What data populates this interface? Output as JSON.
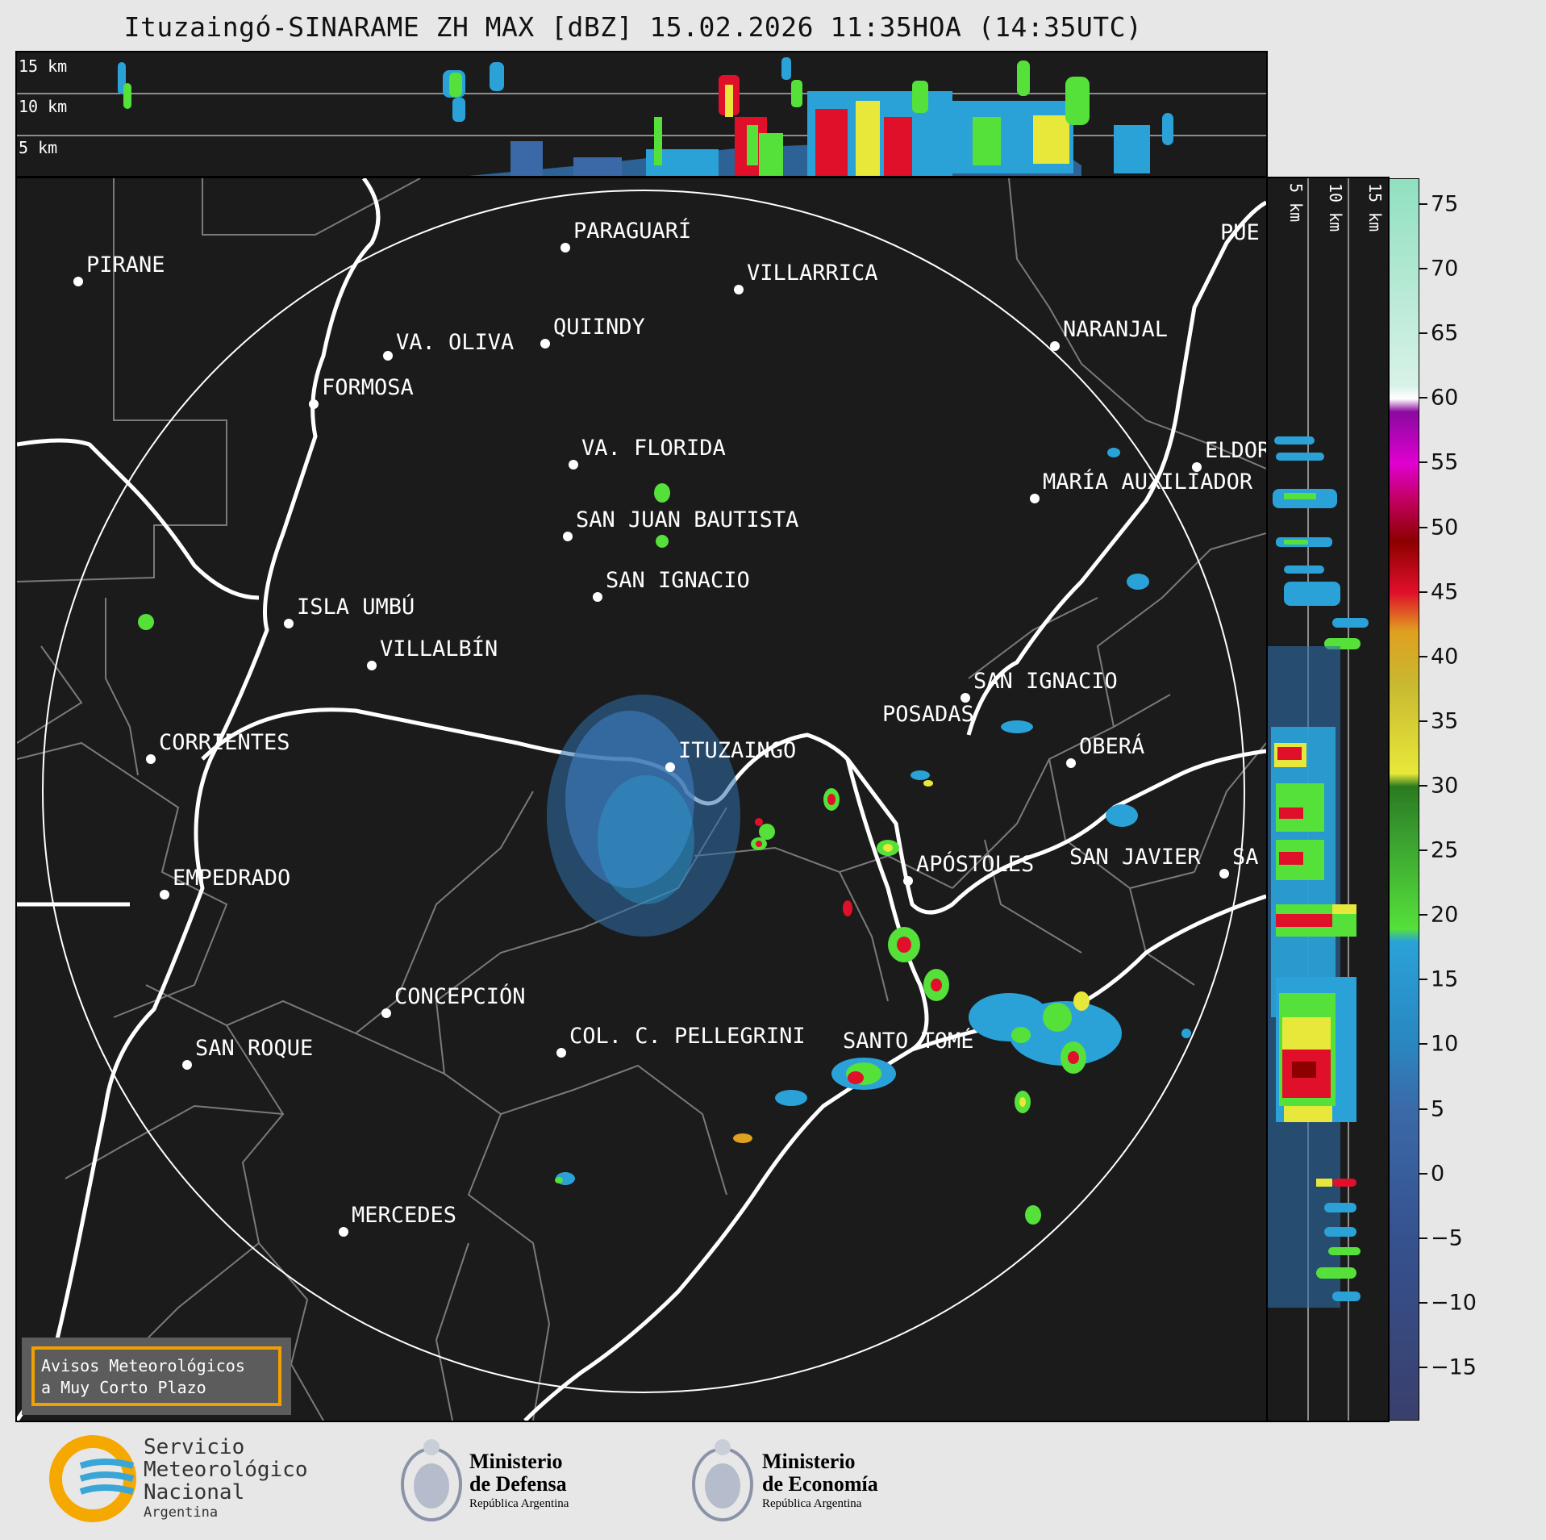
{
  "title": "Ituzaingó-SINARAME ZH MAX [dBZ] 15.02.2026 11:35HOA (14:35UTC)",
  "top_panel": {
    "height_labels": [
      "15 km",
      "10 km",
      "5 km"
    ]
  },
  "side_panel": {
    "height_labels": [
      "5 km",
      "10 km",
      "15 km"
    ]
  },
  "map": {
    "radar_site": "ITUZAINGÓ",
    "places": [
      {
        "name": "PARAGUARÍ"
      },
      {
        "name": "PIRANE"
      },
      {
        "name": "VILLARRICA"
      },
      {
        "name": "VA. OLIVA"
      },
      {
        "name": "QUIINDY"
      },
      {
        "name": "NARANJAL"
      },
      {
        "name": "FORMOSA"
      },
      {
        "name": "VA. FLORIDA"
      },
      {
        "name": "ELDOR"
      },
      {
        "name": "MARÍA AUXILIADOR"
      },
      {
        "name": "SAN JUAN BAUTISTA"
      },
      {
        "name": "SAN IGNACIO"
      },
      {
        "name": "ISLA UMBÚ"
      },
      {
        "name": "VILLALBÍN"
      },
      {
        "name": "SAN IGNACIO"
      },
      {
        "name": "POSADAS"
      },
      {
        "name": "CORRIENTES"
      },
      {
        "name": "ITUZAINGÓ"
      },
      {
        "name": "OBERÁ"
      },
      {
        "name": "APÓSTOLES"
      },
      {
        "name": "SAN JAVIER"
      },
      {
        "name": "SA"
      },
      {
        "name": "EMPEDRADO"
      },
      {
        "name": "CONCEPCIÓN"
      },
      {
        "name": "COL. C. PELLEGRINI"
      },
      {
        "name": "SANTO TOMÉ"
      },
      {
        "name": "SAN ROQUE"
      },
      {
        "name": "MERCEDES"
      },
      {
        "name": "PUE"
      }
    ]
  },
  "notice": {
    "line1": "Avisos Meteorológicos",
    "line2": "a Muy Corto Plazo"
  },
  "colorbar": {
    "unit": "dBZ",
    "ticks": [
      "75",
      "70",
      "65",
      "60",
      "55",
      "50",
      "45",
      "40",
      "35",
      "30",
      "25",
      "20",
      "15",
      "10",
      "5",
      "0",
      "−5",
      "−10",
      "−15"
    ],
    "tick_values": [
      75,
      70,
      65,
      60,
      55,
      50,
      45,
      40,
      35,
      30,
      25,
      20,
      15,
      10,
      5,
      0,
      -5,
      -10,
      -15
    ],
    "range": [
      -19,
      77
    ],
    "colors": {
      "clear": "#3a3f6b",
      "low": "#3b69a8",
      "mid": "#2aa2d8",
      "light_green": "#55e03a",
      "green": "#2a7a20",
      "yellow": "#e8e83a",
      "olive": "#c8b830",
      "orange": "#e0a020",
      "red": "#e0102a",
      "dark_red": "#8c0000",
      "magenta": "#e000d0",
      "purple": "#8a0aa0",
      "white": "#ffffff",
      "mint": "#90e0c0"
    }
  },
  "footer": {
    "smn_line1": "Servicio",
    "smn_line2": "Meteorológico",
    "smn_line3": "Nacional",
    "smn_line4": "Argentina",
    "defensa_line1": "Ministerio",
    "defensa_line2": "de Defensa",
    "defensa_line3": "República Argentina",
    "economia_line1": "Ministerio",
    "economia_line2": "de Economía",
    "economia_line3": "República Argentina"
  }
}
